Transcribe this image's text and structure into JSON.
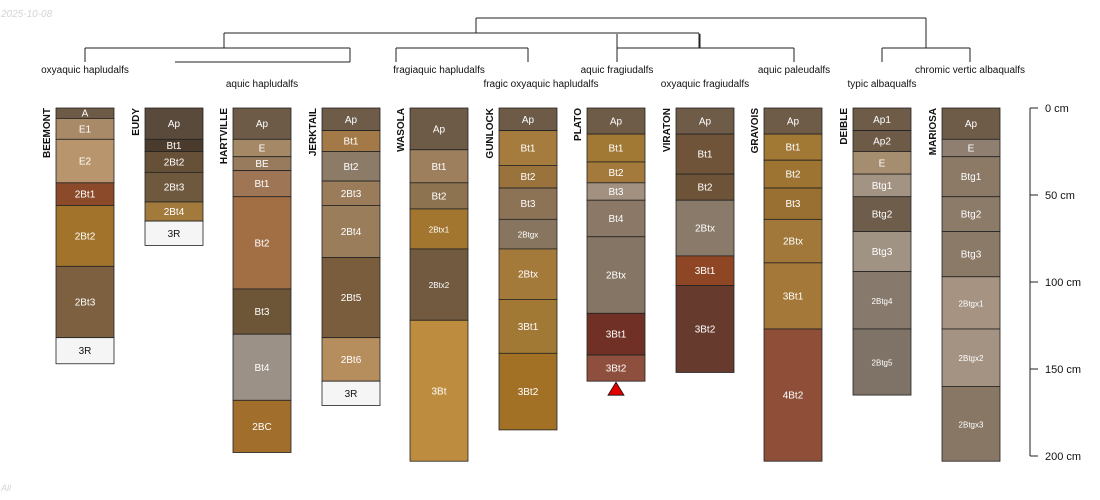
{
  "watermark": {
    "date": "2025-10-08",
    "footer": "All"
  },
  "depth_axis": {
    "unit": "cm",
    "ticks": [
      {
        "depth": 0,
        "label": "0 cm"
      },
      {
        "depth": 50,
        "label": "50 cm"
      },
      {
        "depth": 100,
        "label": "100 cm"
      },
      {
        "depth": 150,
        "label": "150 cm"
      },
      {
        "depth": 200,
        "label": "200 cm"
      }
    ]
  },
  "taxa_labels": [
    {
      "text": "oxyaquic hapludalfs",
      "row": 1
    },
    {
      "text": "aquic hapludalfs",
      "row": 2
    },
    {
      "text": "fragiaquic hapludalfs",
      "row": 1
    },
    {
      "text": "fragic oxyaquic hapludalfs",
      "row": 2
    },
    {
      "text": "aquic fragiudalfs",
      "row": 1
    },
    {
      "text": "oxyaquic fragiudalfs",
      "row": 2
    },
    {
      "text": "aquic paleudalfs",
      "row": 1
    },
    {
      "text": "typic albaqualfs",
      "row": 2
    },
    {
      "text": "chromic vertic albaqualfs",
      "row": 1
    }
  ],
  "profiles": [
    {
      "id": "BEEMONT",
      "horizons": [
        {
          "name": "A",
          "top": 0,
          "bottom": 6,
          "color": "#6e5b47"
        },
        {
          "name": "E1",
          "top": 6,
          "bottom": 18,
          "color": "#a88a68"
        },
        {
          "name": "E2",
          "top": 18,
          "bottom": 43,
          "color": "#b8956d"
        },
        {
          "name": "2Bt1",
          "top": 43,
          "bottom": 56,
          "color": "#8b4b2b"
        },
        {
          "name": "2Bt2",
          "top": 56,
          "bottom": 91,
          "color": "#a2732a"
        },
        {
          "name": "2Bt3",
          "top": 91,
          "bottom": 132,
          "color": "#7d6040"
        },
        {
          "name": "3R",
          "top": 132,
          "bottom": 147,
          "color": "#f5f5f5"
        }
      ]
    },
    {
      "id": "EUDY",
      "horizons": [
        {
          "name": "Ap",
          "top": 0,
          "bottom": 18,
          "color": "#5a4a3c"
        },
        {
          "name": "Bt1",
          "top": 18,
          "bottom": 25,
          "color": "#4a3b2c"
        },
        {
          "name": "2Bt2",
          "top": 25,
          "bottom": 37,
          "color": "#665037"
        },
        {
          "name": "2Bt3",
          "top": 37,
          "bottom": 54,
          "color": "#6e583e"
        },
        {
          "name": "2Bt4",
          "top": 54,
          "bottom": 65,
          "color": "#a27a3c"
        },
        {
          "name": "3R",
          "top": 65,
          "bottom": 79,
          "color": "#f5f5f5"
        }
      ]
    },
    {
      "id": "HARTVILLE",
      "horizons": [
        {
          "name": "Ap",
          "top": 0,
          "bottom": 18,
          "color": "#6d5a47"
        },
        {
          "name": "E",
          "top": 18,
          "bottom": 28,
          "color": "#a58866"
        },
        {
          "name": "BE",
          "top": 28,
          "bottom": 36,
          "color": "#987b5c"
        },
        {
          "name": "Bt1",
          "top": 36,
          "bottom": 51,
          "color": "#9e7656"
        },
        {
          "name": "Bt2",
          "top": 51,
          "bottom": 104,
          "color": "#a26f45"
        },
        {
          "name": "Bt3",
          "top": 104,
          "bottom": 130,
          "color": "#6d5538"
        },
        {
          "name": "Bt4",
          "top": 130,
          "bottom": 168,
          "color": "#9b9187"
        },
        {
          "name": "2BC",
          "top": 168,
          "bottom": 198,
          "color": "#a16e2c"
        }
      ]
    },
    {
      "id": "JERKTAIL",
      "horizons": [
        {
          "name": "Ap",
          "top": 0,
          "bottom": 13,
          "color": "#6e5c49"
        },
        {
          "name": "Bt1",
          "top": 13,
          "bottom": 25,
          "color": "#a37a47"
        },
        {
          "name": "Bt2",
          "top": 25,
          "bottom": 42,
          "color": "#8c7b67"
        },
        {
          "name": "2Bt3",
          "top": 42,
          "bottom": 56,
          "color": "#9a7c5a"
        },
        {
          "name": "2Bt4",
          "top": 56,
          "bottom": 86,
          "color": "#9a7d5b"
        },
        {
          "name": "2Bt5",
          "top": 86,
          "bottom": 132,
          "color": "#7a5d3c"
        },
        {
          "name": "2Bt6",
          "top": 132,
          "bottom": 157,
          "color": "#b68e5e"
        },
        {
          "name": "3R",
          "top": 157,
          "bottom": 171,
          "color": "#f5f5f5"
        }
      ]
    },
    {
      "id": "WASOLA",
      "horizons": [
        {
          "name": "Ap",
          "top": 0,
          "bottom": 24,
          "color": "#6e5b47"
        },
        {
          "name": "Bt1",
          "top": 24,
          "bottom": 43,
          "color": "#9e7f5d"
        },
        {
          "name": "Bt2",
          "top": 43,
          "bottom": 58,
          "color": "#8e7350"
        },
        {
          "name": "2Btx1",
          "top": 58,
          "bottom": 81,
          "color": "#a2762e"
        },
        {
          "name": "2Btx2",
          "top": 81,
          "bottom": 122,
          "color": "#725a40"
        },
        {
          "name": "3Bt",
          "top": 122,
          "bottom": 203,
          "color": "#bd8c3e"
        }
      ]
    },
    {
      "id": "GUNLOCK",
      "horizons": [
        {
          "name": "Ap",
          "top": 0,
          "bottom": 13,
          "color": "#6d5b48"
        },
        {
          "name": "Bt1",
          "top": 13,
          "bottom": 33,
          "color": "#a57b3e"
        },
        {
          "name": "Bt2",
          "top": 33,
          "bottom": 46,
          "color": "#9a733c"
        },
        {
          "name": "Bt3",
          "top": 46,
          "bottom": 64,
          "color": "#8c7356"
        },
        {
          "name": "2Btgx",
          "top": 64,
          "bottom": 81,
          "color": "#887560"
        },
        {
          "name": "2Btx",
          "top": 81,
          "bottom": 110,
          "color": "#a47a3b"
        },
        {
          "name": "3Bt1",
          "top": 110,
          "bottom": 141,
          "color": "#a27835"
        },
        {
          "name": "3Bt2",
          "top": 141,
          "bottom": 185,
          "color": "#a27126"
        }
      ]
    },
    {
      "id": "PLATO",
      "horizons": [
        {
          "name": "Ap",
          "top": 0,
          "bottom": 15,
          "color": "#6e5c49"
        },
        {
          "name": "Bt1",
          "top": 15,
          "bottom": 31,
          "color": "#a27835"
        },
        {
          "name": "Bt2",
          "top": 31,
          "bottom": 43,
          "color": "#a37a3b"
        },
        {
          "name": "Bt3",
          "top": 43,
          "bottom": 53,
          "color": "#a29180"
        },
        {
          "name": "Bt4",
          "top": 53,
          "bottom": 74,
          "color": "#8b7866"
        },
        {
          "name": "2Btx",
          "top": 74,
          "bottom": 118,
          "color": "#847565"
        },
        {
          "name": "3Bt1",
          "top": 118,
          "bottom": 142,
          "color": "#703026"
        },
        {
          "name": "3Bt2",
          "top": 142,
          "bottom": 157,
          "color": "#8e4f3e"
        }
      ]
    },
    {
      "id": "VIRATON",
      "horizons": [
        {
          "name": "Ap",
          "top": 0,
          "bottom": 15,
          "color": "#6e5c49"
        },
        {
          "name": "Bt1",
          "top": 15,
          "bottom": 38,
          "color": "#6f5439"
        },
        {
          "name": "Bt2",
          "top": 38,
          "bottom": 53,
          "color": "#6d5438"
        },
        {
          "name": "2Btx",
          "top": 53,
          "bottom": 85,
          "color": "#8a7a6a"
        },
        {
          "name": "3Bt1",
          "top": 85,
          "bottom": 102,
          "color": "#8e4624"
        },
        {
          "name": "3Bt2",
          "top": 102,
          "bottom": 152,
          "color": "#673a2e"
        }
      ]
    },
    {
      "id": "GRAVOIS",
      "horizons": [
        {
          "name": "Ap",
          "top": 0,
          "bottom": 15,
          "color": "#6e5c49"
        },
        {
          "name": "Bt1",
          "top": 15,
          "bottom": 30,
          "color": "#a27835"
        },
        {
          "name": "Bt2",
          "top": 30,
          "bottom": 46,
          "color": "#9e7433"
        },
        {
          "name": "Bt3",
          "top": 46,
          "bottom": 64,
          "color": "#9a7032"
        },
        {
          "name": "2Btx",
          "top": 64,
          "bottom": 89,
          "color": "#a2773a"
        },
        {
          "name": "3Bt1",
          "top": 89,
          "bottom": 127,
          "color": "#a37838"
        },
        {
          "name": "4Bt2",
          "top": 127,
          "bottom": 203,
          "color": "#8e4e38"
        }
      ]
    },
    {
      "id": "DEIBLE",
      "horizons": [
        {
          "name": "Ap1",
          "top": 0,
          "bottom": 13,
          "color": "#6e5c49"
        },
        {
          "name": "Ap2",
          "top": 13,
          "bottom": 25,
          "color": "#6d5b48"
        },
        {
          "name": "E",
          "top": 25,
          "bottom": 38,
          "color": "#a58d6f"
        },
        {
          "name": "Btg1",
          "top": 38,
          "bottom": 51,
          "color": "#a39383"
        },
        {
          "name": "Btg2",
          "top": 51,
          "bottom": 71,
          "color": "#6e5d4a"
        },
        {
          "name": "Btg3",
          "top": 71,
          "bottom": 94,
          "color": "#a19384"
        },
        {
          "name": "2Btg4",
          "top": 94,
          "bottom": 127,
          "color": "#87796b"
        },
        {
          "name": "2Btg5",
          "top": 127,
          "bottom": 165,
          "color": "#7e7366"
        }
      ]
    },
    {
      "id": "MARIOSA",
      "horizons": [
        {
          "name": "Ap",
          "top": 0,
          "bottom": 18,
          "color": "#6e5c49"
        },
        {
          "name": "E",
          "top": 18,
          "bottom": 28,
          "color": "#8e7f70"
        },
        {
          "name": "Btg1",
          "top": 28,
          "bottom": 51,
          "color": "#8c7a67"
        },
        {
          "name": "Btg2",
          "top": 51,
          "bottom": 71,
          "color": "#8d7b69"
        },
        {
          "name": "Btg3",
          "top": 71,
          "bottom": 97,
          "color": "#8b7a68"
        },
        {
          "name": "2Btgx1",
          "top": 97,
          "bottom": 127,
          "color": "#a69381"
        },
        {
          "name": "2Btgx2",
          "top": 127,
          "bottom": 160,
          "color": "#a49282"
        },
        {
          "name": "2Btgx3",
          "top": 160,
          "bottom": 203,
          "color": "#887765"
        }
      ]
    }
  ],
  "markers": [
    {
      "profile": "PLATO",
      "type": "bottom-triangle",
      "color": "#e00000"
    }
  ]
}
